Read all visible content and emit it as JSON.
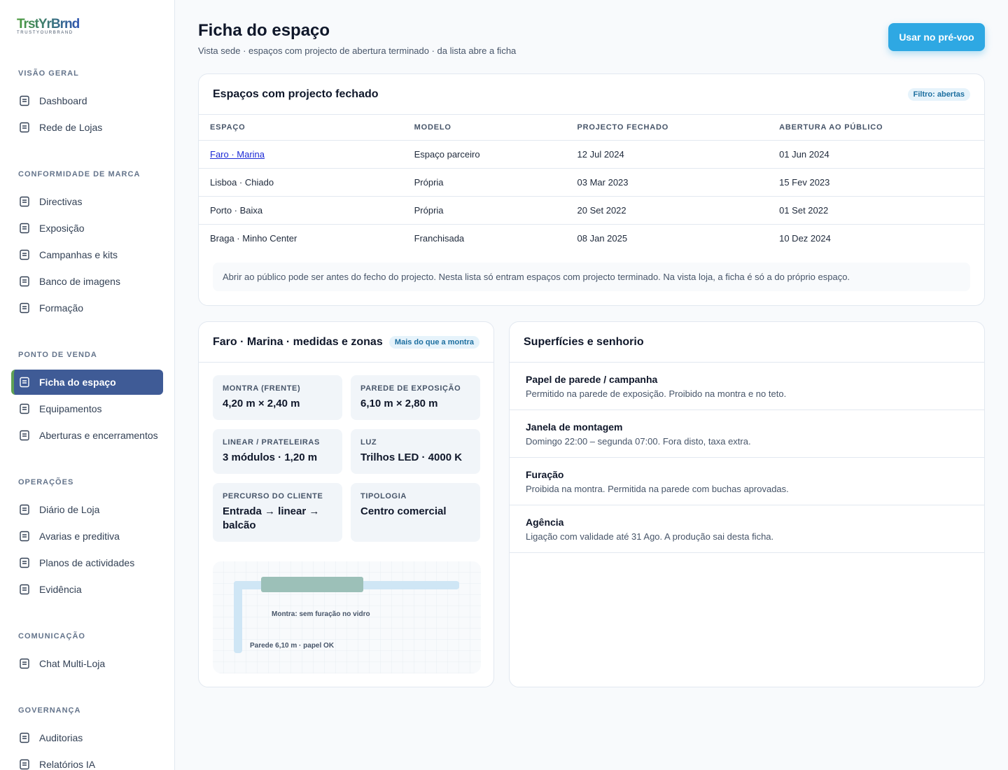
{
  "brand": {
    "name": "TrstYrBrnd",
    "tagline": "TRUSTYOURBRAND"
  },
  "nav": [
    {
      "title": "VISÃO GERAL",
      "items": [
        "Dashboard",
        "Rede de Lojas"
      ]
    },
    {
      "title": "CONFORMIDADE DE MARCA",
      "items": [
        "Directivas",
        "Exposição",
        "Campanhas e kits",
        "Banco de imagens",
        "Formação"
      ]
    },
    {
      "title": "PONTO DE VENDA",
      "items": [
        "Ficha do espaço",
        "Equipamentos",
        "Aberturas e encerramentos"
      ]
    },
    {
      "title": "OPERAÇÕES",
      "items": [
        "Diário de Loja",
        "Avarias e preditiva",
        "Planos de actividades",
        "Evidência"
      ]
    },
    {
      "title": "COMUNICAÇÃO",
      "items": [
        "Chat Multi-Loja"
      ]
    },
    {
      "title": "GOVERNANÇA",
      "items": [
        "Auditorias",
        "Relatórios IA"
      ]
    }
  ],
  "header": {
    "title": "Ficha do espaço",
    "subtitle": "Vista sede · espaços com projecto de abertura terminado · da lista abre a ficha",
    "button": "Usar no pré-voo"
  },
  "table": {
    "title": "Espaços com projecto fechado",
    "badge": "Filtro: abertas",
    "columns": [
      "ESPAÇO",
      "MODELO",
      "PROJECTO FECHADO",
      "ABERTURA AO PÚBLICO"
    ],
    "rows": [
      [
        "Faro · Marina",
        "Espaço parceiro",
        "12 Jul 2024",
        "01 Jun 2024"
      ],
      [
        "Lisboa · Chiado",
        "Própria",
        "03 Mar 2023",
        "15 Fev 2023"
      ],
      [
        "Porto · Baixa",
        "Própria",
        "20 Set 2022",
        "01 Set 2022"
      ],
      [
        "Braga · Minho Center",
        "Franchisada",
        "08 Jan 2025",
        "10 Dez 2024"
      ]
    ],
    "note": "Abrir ao público pode ser antes do fecho do projecto. Nesta lista só entram espaços com projecto terminado. Na vista loja, a ficha é só a do próprio espaço."
  },
  "measures": {
    "title": "Faro · Marina · medidas e zonas",
    "badge": "Mais do que a montra",
    "tiles": [
      {
        "label": "MONTRA (FRENTE)",
        "value": "4,20 m × 2,40 m"
      },
      {
        "label": "PAREDE DE EXPOSIÇÃO",
        "value": "6,10 m × 2,80 m"
      },
      {
        "label": "LINEAR / PRATELEIRAS",
        "value": "3 módulos · 1,20 m"
      },
      {
        "label": "LUZ",
        "value": "Trilhos LED · 4000 K"
      },
      {
        "label": "PERCURSO DO CLIENTE",
        "value": "Entrada → linear → balcão"
      },
      {
        "label": "TIPOLOGIA",
        "value": "Centro comercial"
      }
    ],
    "plan": {
      "montra": "Montra: sem furação no vidro",
      "parede": "Parede 6,10 m · papel OK"
    }
  },
  "surfaces": {
    "title": "Superfícies e senhorio",
    "items": [
      {
        "title": "Papel de parede / campanha",
        "text": "Permitido na parede de exposição. Proibido na montra e no teto."
      },
      {
        "title": "Janela de montagem",
        "text": "Domingo 22:00 – segunda 07:00. Fora disto, taxa extra."
      },
      {
        "title": "Furação",
        "text": "Proibida na montra. Permitida na parede com buchas aprovadas."
      },
      {
        "title": "Agência",
        "text": "Ligação com validade até 31 Ago. A produção sai desta ficha."
      }
    ]
  }
}
